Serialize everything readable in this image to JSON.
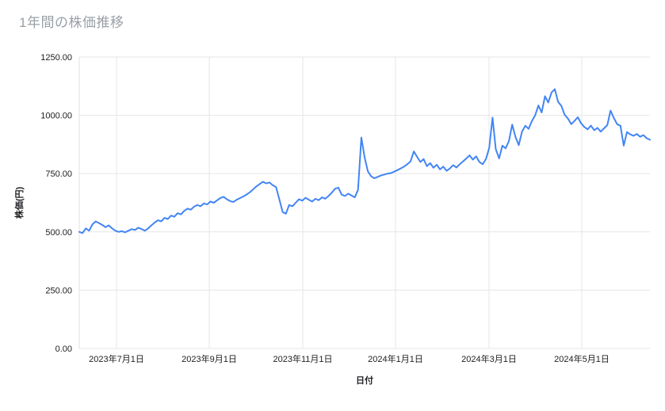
{
  "page": {
    "background": "#ffffff"
  },
  "chart_data": {
    "type": "line",
    "title": "1年間の株価推移",
    "xlabel": "日付",
    "ylabel": "株価(円)",
    "ylim": [
      0,
      1250
    ],
    "grid": true,
    "legend": "none",
    "x_range": {
      "start": "2023-06-07",
      "end": "2024-06-15"
    },
    "x_ticks": [
      {
        "label": "2023年7月1日",
        "pos": 0.0653
      },
      {
        "label": "2023年9月1日",
        "pos": 0.2278
      },
      {
        "label": "2023年11月1日",
        "pos": 0.3917
      },
      {
        "label": "2024年1月1日",
        "pos": 0.5542
      },
      {
        "label": "2024年3月1日",
        "pos": 0.7181
      },
      {
        "label": "2024年5月1日",
        "pos": 0.8806
      }
    ],
    "y_ticks": [
      {
        "label": "0.00",
        "value": 0
      },
      {
        "label": "250.00",
        "value": 250
      },
      {
        "label": "500.00",
        "value": 500
      },
      {
        "label": "750.00",
        "value": 750
      },
      {
        "label": "1000.00",
        "value": 1000
      },
      {
        "label": "1250.00",
        "value": 1250
      }
    ],
    "series": [
      {
        "name": "株価",
        "color": "#4285f4",
        "values": [
          500,
          495,
          515,
          505,
          532,
          545,
          538,
          530,
          520,
          528,
          515,
          505,
          500,
          503,
          498,
          505,
          512,
          508,
          518,
          512,
          505,
          515,
          528,
          540,
          550,
          545,
          560,
          555,
          570,
          565,
          580,
          575,
          590,
          600,
          595,
          608,
          615,
          610,
          622,
          618,
          630,
          625,
          635,
          645,
          650,
          640,
          632,
          628,
          638,
          645,
          652,
          660,
          670,
          682,
          695,
          705,
          715,
          708,
          712,
          700,
          692,
          640,
          585,
          578,
          615,
          610,
          625,
          640,
          634,
          646,
          638,
          630,
          642,
          636,
          648,
          642,
          654,
          668,
          685,
          690,
          660,
          654,
          664,
          656,
          648,
          680,
          905,
          820,
          760,
          738,
          730,
          736,
          742,
          746,
          750,
          752,
          758,
          765,
          772,
          780,
          790,
          802,
          845,
          822,
          800,
          812,
          782,
          795,
          775,
          788,
          768,
          780,
          762,
          772,
          786,
          776,
          790,
          802,
          815,
          828,
          810,
          824,
          800,
          790,
          812,
          860,
          990,
          855,
          815,
          870,
          858,
          890,
          960,
          908,
          872,
          930,
          955,
          942,
          975,
          1000,
          1042,
          1012,
          1082,
          1055,
          1098,
          1112,
          1058,
          1040,
          1002,
          986,
          962,
          976,
          992,
          966,
          950,
          940,
          956,
          936,
          946,
          930,
          944,
          958,
          1020,
          988,
          962,
          955,
          870,
          928,
          918,
          912,
          920,
          908,
          915,
          902,
          895
        ]
      }
    ],
    "colors": {
      "line": "#4285f4",
      "grid": "#e6e6e6",
      "axis_line": "#e0e0e0",
      "title_text": "#9aa0a6",
      "tick_text": "#202124",
      "axis_title_text": "#202124"
    }
  }
}
